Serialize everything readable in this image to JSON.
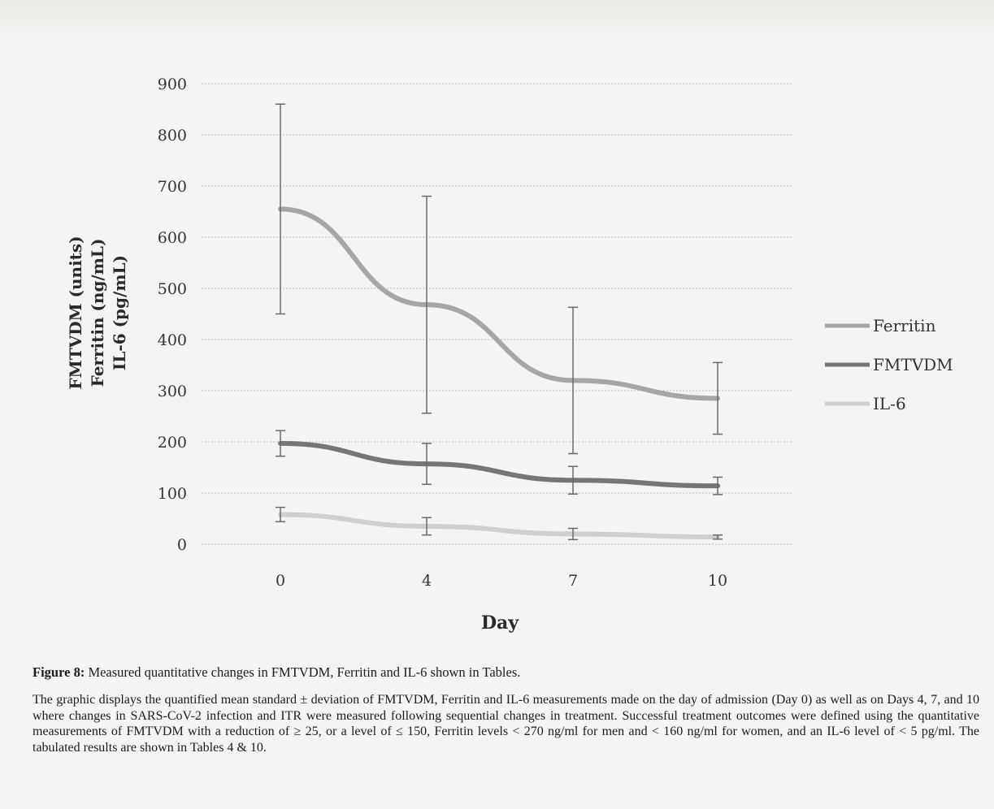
{
  "chart_data": {
    "type": "line",
    "x": [
      0,
      4,
      7,
      10
    ],
    "categories": [
      "0",
      "4",
      "7",
      "10"
    ],
    "xlabel": "Day",
    "ylabel_lines": [
      "FMTVDM (units)",
      "Ferritin (ng/mL)",
      "IL-6 (pg/mL)"
    ],
    "ylim": [
      0,
      900
    ],
    "yticks": [
      0,
      100,
      200,
      300,
      400,
      500,
      600,
      700,
      800,
      900
    ],
    "grid": true,
    "legend_position": "right",
    "series": [
      {
        "name": "Ferritin",
        "color": "#a6a6a6",
        "values": [
          655,
          468,
          320,
          285
        ],
        "error": [
          205,
          212,
          143,
          70
        ]
      },
      {
        "name": "FMTVDM",
        "color": "#767676",
        "values": [
          197,
          157,
          125,
          114
        ],
        "error": [
          25,
          40,
          27,
          17
        ]
      },
      {
        "name": "IL-6",
        "color": "#cfcfcf",
        "values": [
          58,
          35,
          20,
          14
        ],
        "error": [
          14,
          17,
          11,
          4
        ]
      }
    ]
  },
  "caption": {
    "label": "Figure 8:",
    "title": "Measured quantitative changes in FMTVDM, Ferritin and IL-6 shown in Tables.",
    "body": "The graphic displays the quantified mean standard ± deviation of FMTVDM, Ferritin and IL-6 measurements made on the day of admission (Day 0) as well as on Days 4, 7, and 10 where changes in SARS-CoV-2 infection and ITR were measured following sequential changes in treatment. Successful treatment outcomes were defined using the quantitative measurements of FMTVDM with a reduction of ≥ 25, or a level of ≤ 150, Ferritin levels < 270 ng/ml for men and < 160 ng/ml for women, and an IL-6 level of < 5 pg/ml. The tabulated results are shown in Tables 4 & 10."
  }
}
